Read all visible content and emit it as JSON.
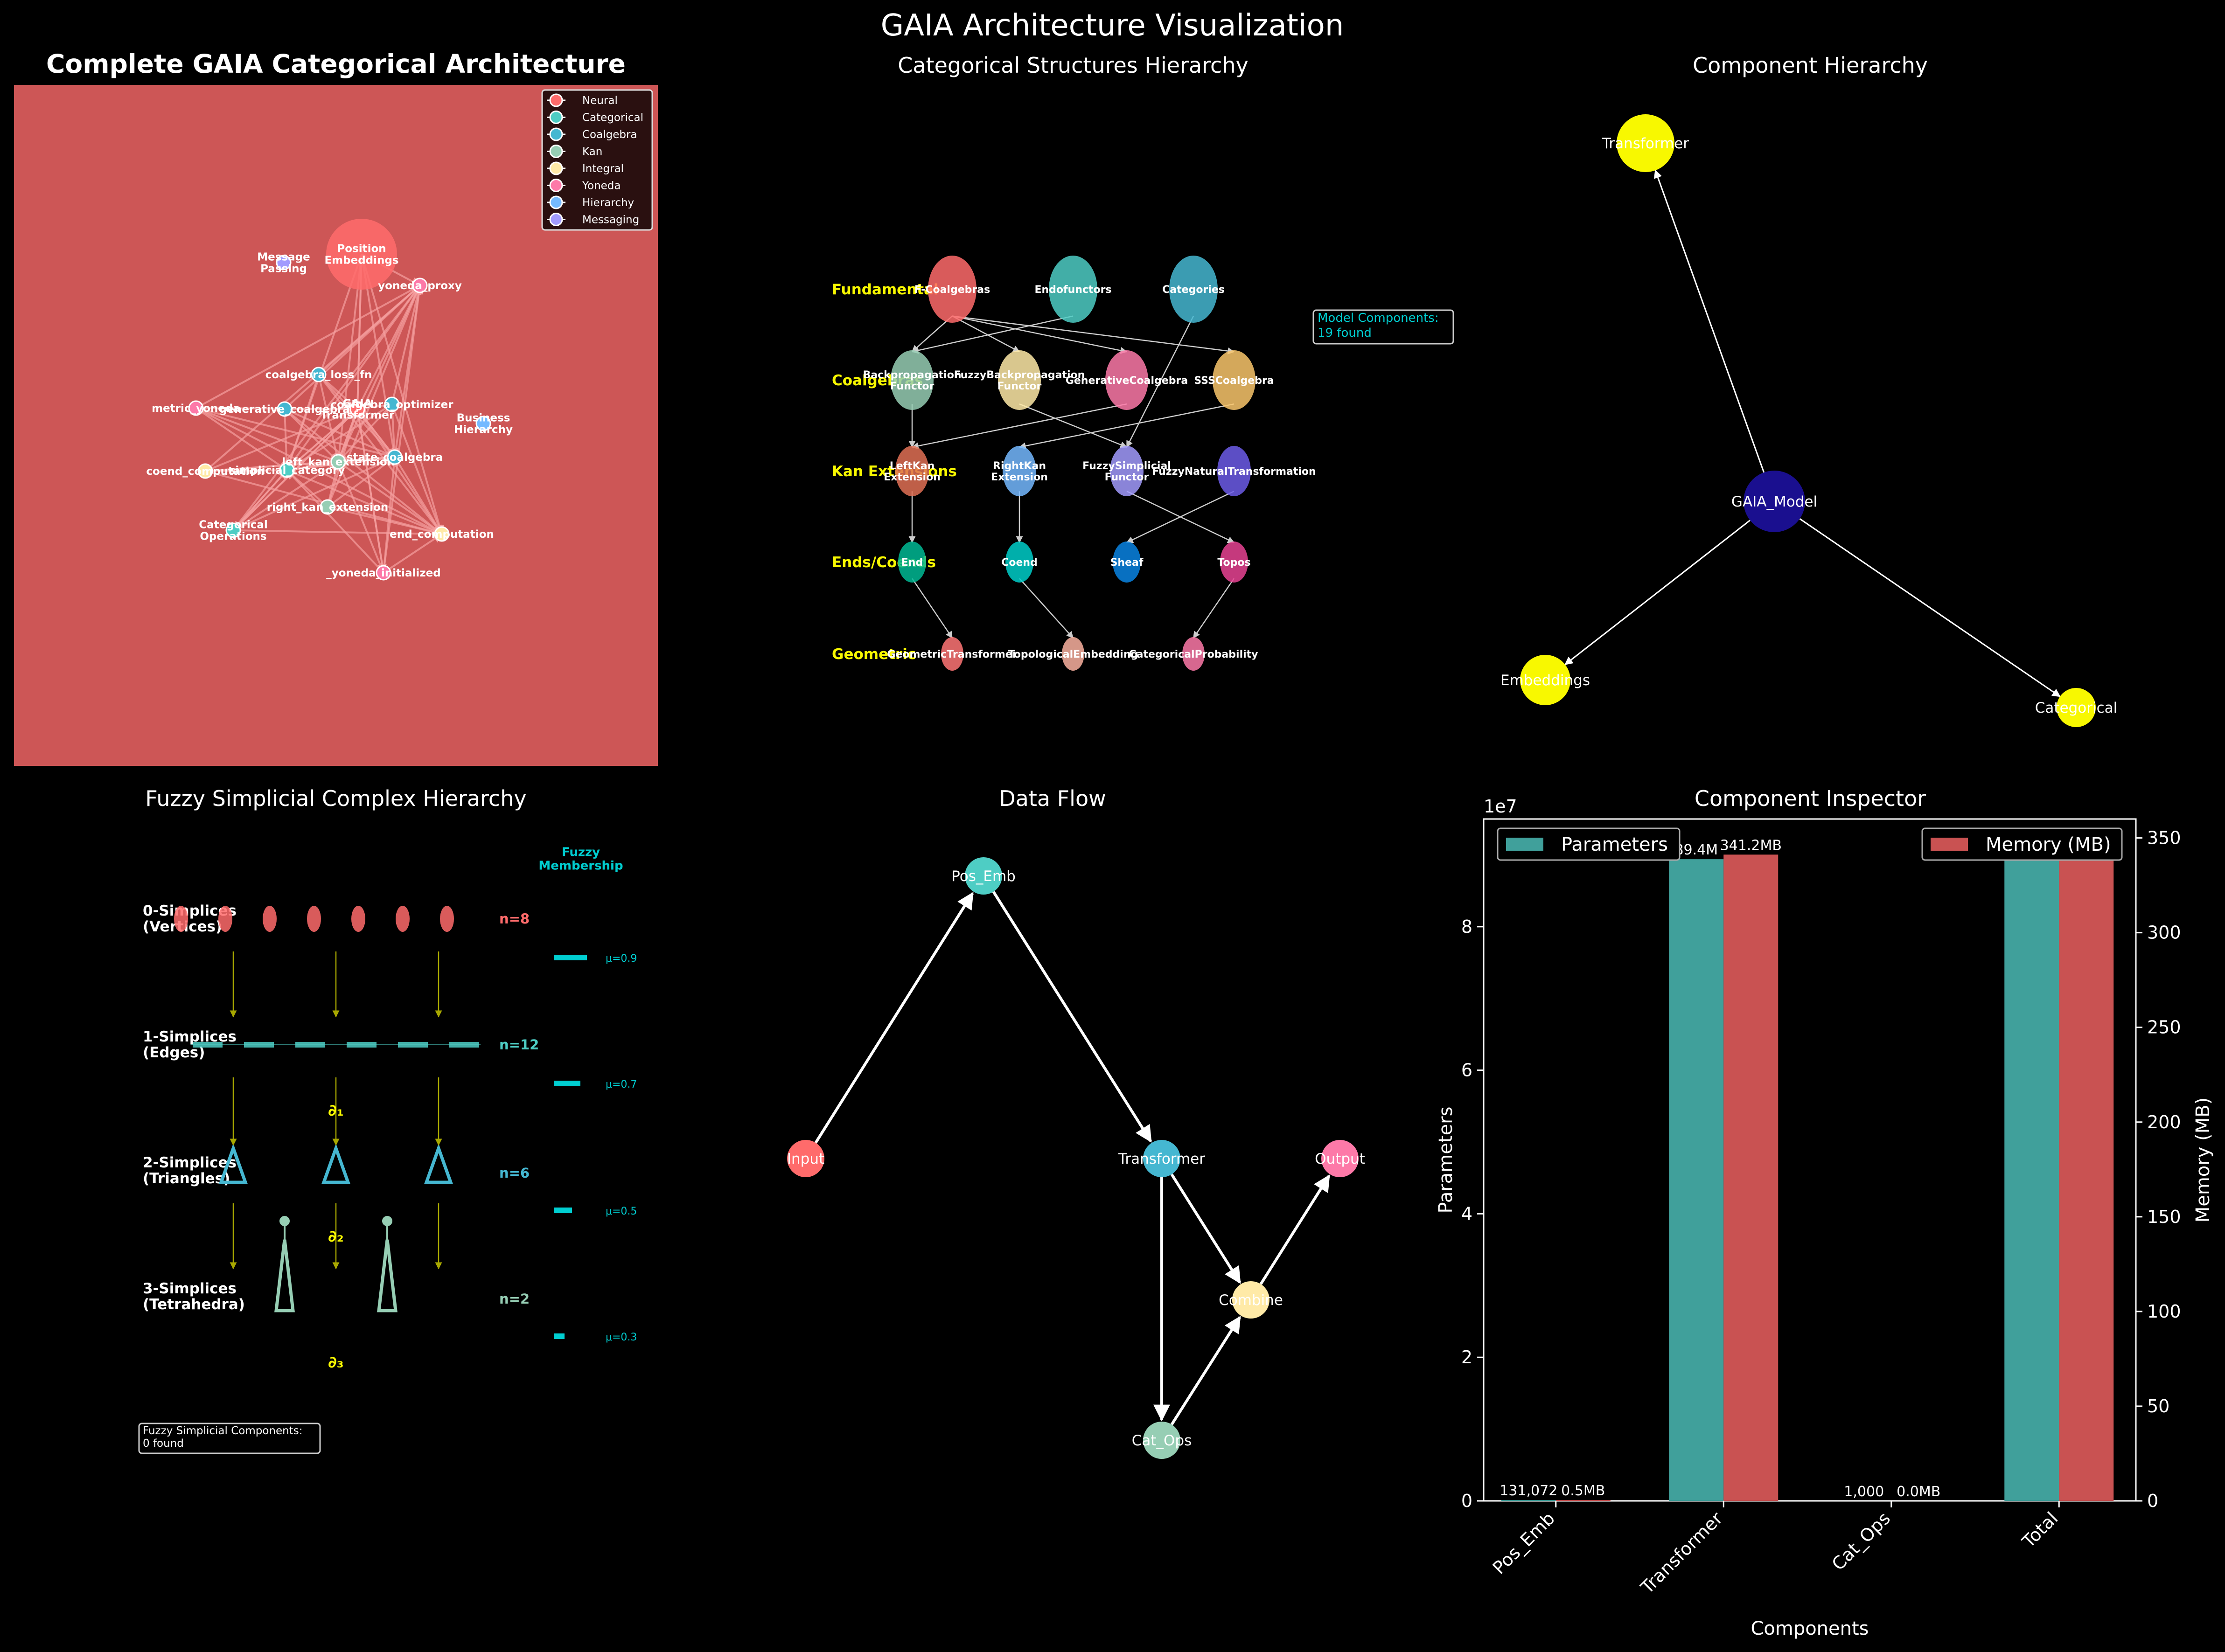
{
  "title": "GAIA Architecture Visualization",
  "colors": {
    "bg": "#000000",
    "panel_red": "#cd5656",
    "node_red": "#ff6b6b",
    "teal": "#4ecdc4",
    "blue": "#45b7d1",
    "sage": "#96ceb4",
    "cream": "#ffeaa7",
    "pink": "#fd79a8",
    "cornflower": "#74b9ff",
    "lavender": "#a29bfe",
    "yellow": "#f8f800",
    "navy": "#1a0f8f",
    "cyan": "#00ced1",
    "bar_param": "#40a09b",
    "bar_mem": "#c95252"
  },
  "panel1": {
    "title": "Complete GAIA Categorical Architecture",
    "legend": [
      {
        "label": "Neural",
        "color": "#ff6b6b"
      },
      {
        "label": "Categorical",
        "color": "#4ecdc4"
      },
      {
        "label": "Coalgebra",
        "color": "#45b7d1"
      },
      {
        "label": "Kan",
        "color": "#96ceb4"
      },
      {
        "label": "Integral",
        "color": "#ffeaa7"
      },
      {
        "label": "Yoneda",
        "color": "#fd79a8"
      },
      {
        "label": "Hierarchy",
        "color": "#74b9ff"
      },
      {
        "label": "Messaging",
        "color": "#a29bfe"
      }
    ],
    "nodes": [
      {
        "id": "pos",
        "label": "Position\nEmbeddings",
        "color": "#ff6b6b",
        "big": true
      },
      {
        "id": "msg",
        "label": "Message\nPassing",
        "color": "#a29bfe"
      },
      {
        "id": "yproxy",
        "label": "yoneda_proxy",
        "color": "#fd79a8"
      },
      {
        "id": "closs",
        "label": "coalgebra_loss_fn",
        "color": "#45b7d1"
      },
      {
        "id": "metric",
        "label": "metric_yoneda",
        "color": "#fd79a8"
      },
      {
        "id": "gencoal",
        "label": "generative_coalgebra",
        "color": "#45b7d1"
      },
      {
        "id": "transformer",
        "label": "GAIA\nTransformer",
        "color": "#ff6b6b"
      },
      {
        "id": "copt",
        "label": "coalgebra_optimizer",
        "color": "#45b7d1"
      },
      {
        "id": "biz",
        "label": "Business\nHierarchy",
        "color": "#74b9ff"
      },
      {
        "id": "coend",
        "label": "coend_computation",
        "color": "#ffeaa7"
      },
      {
        "id": "simpcat",
        "label": "simplicial_category",
        "color": "#4ecdc4"
      },
      {
        "id": "leftkan",
        "label": "left_kan_extension",
        "color": "#96ceb4"
      },
      {
        "id": "statecoal",
        "label": "state_coalgebra",
        "color": "#45b7d1"
      },
      {
        "id": "rightkan",
        "label": "right_kan_extension",
        "color": "#96ceb4"
      },
      {
        "id": "catops",
        "label": "Categorical\nOperations",
        "color": "#4ecdc4"
      },
      {
        "id": "endcomp",
        "label": "end_computation",
        "color": "#ffeaa7"
      },
      {
        "id": "yinit",
        "label": "_yoneda_initialized",
        "color": "#fd79a8"
      }
    ]
  },
  "panel2": {
    "title": "Categorical Structures Hierarchy",
    "rows": [
      "Fundamental",
      "Coalgebras",
      "Kan Extensions",
      "Ends/Coends",
      "Geometric"
    ],
    "info": "Model Components:\n19 found",
    "nodes": [
      {
        "id": "falg",
        "label": "F-Coalgebras",
        "color": "#ff6b6b"
      },
      {
        "id": "endo",
        "label": "Endofunctors",
        "color": "#4ecdc4"
      },
      {
        "id": "cats",
        "label": "Categories",
        "color": "#45b7d1"
      },
      {
        "id": "bpf",
        "label": "Backpropagation\nFunctor",
        "color": "#96ceb4"
      },
      {
        "id": "fbpf",
        "label": "FuzzyBackpropagation\nFunctor",
        "color": "#ffeaa7"
      },
      {
        "id": "gencoal",
        "label": "GenerativeCoalgebra",
        "color": "#fd79a8"
      },
      {
        "id": "sss",
        "label": "SSSCoalgebra",
        "color": "#f9c66b"
      },
      {
        "id": "lk",
        "label": "LeftKan\nExtension",
        "color": "#e17055"
      },
      {
        "id": "rk",
        "label": "RightKan\nExtension",
        "color": "#74b9ff"
      },
      {
        "id": "fsf",
        "label": "FuzzySimplicial\nFunctor",
        "color": "#a29bfe"
      },
      {
        "id": "fnt",
        "label": "FuzzyNaturalTransformation",
        "color": "#6c5ce7"
      },
      {
        "id": "end",
        "label": "End",
        "color": "#00b894"
      },
      {
        "id": "coend",
        "label": "Coend",
        "color": "#00cec9"
      },
      {
        "id": "sheaf",
        "label": "Sheaf",
        "color": "#0984e3"
      },
      {
        "id": "topos",
        "label": "Topos",
        "color": "#e84393"
      },
      {
        "id": "geo",
        "label": "GeometricTransformer",
        "color": "#ff7675"
      },
      {
        "id": "topo",
        "label": "TopologicalEmbedding",
        "color": "#fab1a0"
      },
      {
        "id": "prob",
        "label": "CategoricalProbability",
        "color": "#fd79a8"
      }
    ]
  },
  "panel3": {
    "title": "Component Hierarchy",
    "nodes": [
      {
        "id": "transformer",
        "label": "Transformer"
      },
      {
        "id": "gaia",
        "label": "GAIA_Model"
      },
      {
        "id": "emb",
        "label": "Embeddings"
      },
      {
        "id": "cat",
        "label": "Categorical"
      }
    ]
  },
  "panel4": {
    "title": "Fuzzy Simplicial Complex Hierarchy",
    "membership_title": "Fuzzy\nMembership",
    "levels": [
      {
        "label": "0-Simplices\n(Vertices)",
        "count": "n=8",
        "mu": "μ=0.9"
      },
      {
        "label": "1-Simplices\n(Edges)",
        "count": "n=12",
        "mu": "μ=0.7"
      },
      {
        "label": "2-Simplices\n(Triangles)",
        "count": "n=6",
        "mu": "μ=0.5"
      },
      {
        "label": "3-Simplices\n(Tetrahedra)",
        "count": "n=2",
        "mu": "μ=0.3"
      }
    ],
    "boundaries": [
      "∂₁",
      "∂₂",
      "∂₃"
    ],
    "info": "Fuzzy Simplicial Components:\n0 found"
  },
  "panel5": {
    "title": "Data Flow",
    "nodes": [
      {
        "id": "input",
        "label": "Input",
        "color": "#ff6b6b"
      },
      {
        "id": "pos",
        "label": "Pos_Emb",
        "color": "#4ecdc4"
      },
      {
        "id": "transformer",
        "label": "Transformer",
        "color": "#45b7d1"
      },
      {
        "id": "output",
        "label": "Output",
        "color": "#fd79a8"
      },
      {
        "id": "combine",
        "label": "Combine",
        "color": "#ffeaa7"
      },
      {
        "id": "catops",
        "label": "Cat_Ops",
        "color": "#96ceb4"
      }
    ]
  },
  "panel6": {
    "title": "Component Inspector",
    "xlabel": "Components",
    "ylabel": "Parameters",
    "y2label": "Memory (MB)",
    "exponent": "1e7",
    "legend_left": "Parameters",
    "legend_right": "Memory (MB)"
  },
  "chart_data": {
    "type": "bar",
    "categories": [
      "Pos_Emb",
      "Transformer",
      "Cat_Ops",
      "Total"
    ],
    "series": [
      {
        "name": "Parameters",
        "values": [
          131072,
          89400000,
          1000,
          89400000
        ],
        "labels": [
          "131,072",
          "89.4M",
          "1,000",
          ""
        ]
      },
      {
        "name": "Memory (MB)",
        "values": [
          0.5,
          341.2,
          0.0,
          341.2
        ],
        "labels": [
          "0.5MB",
          "341.2MB",
          "0.0MB",
          ""
        ]
      }
    ],
    "ylim": [
      0,
      95000000
    ],
    "y2lim": [
      0,
      360
    ],
    "yticks": [
      0,
      2,
      4,
      6,
      8
    ],
    "y2ticks": [
      0,
      50,
      100,
      150,
      200,
      250,
      300,
      350
    ]
  }
}
